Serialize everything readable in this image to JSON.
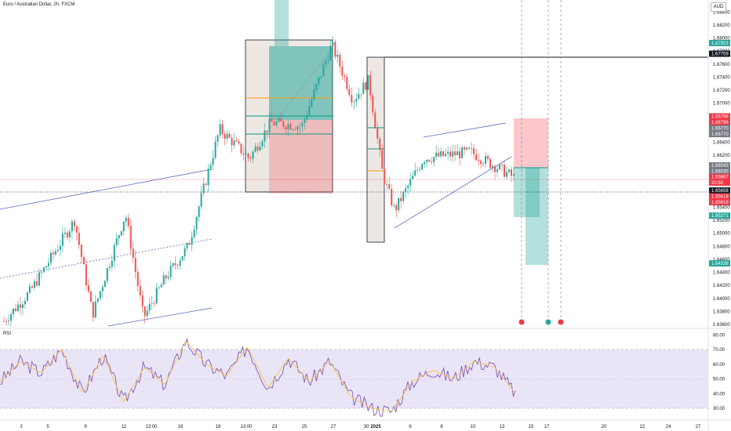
{
  "header": {
    "title": "Euro / Australian Dollar, 2h, FXCM",
    "currency": "AUD",
    "rsi_label": "RSI"
  },
  "price_axis": {
    "ticks": [
      "1.68400",
      "1.68200",
      "1.68000",
      "1.67800",
      "1.67600",
      "1.67400",
      "1.67200",
      "1.67000",
      "1.66800",
      "1.66600",
      "1.66400",
      "1.66200",
      "1.66000",
      "1.65800",
      "1.65600",
      "1.65400",
      "1.65200",
      "1.65000",
      "1.64800",
      "1.64600",
      "1.64400",
      "1.64200",
      "1.64000",
      "1.63800",
      "1.63600"
    ],
    "tags": [
      {
        "label": "1.67923",
        "value": 1.67923,
        "color": "#26a69a"
      },
      {
        "label": "1.67759",
        "value": 1.67759,
        "color": "#131722"
      },
      {
        "label": "1.66796",
        "value": 1.66796,
        "color": "#f23645"
      },
      {
        "label": "1.66796",
        "value": 1.66706,
        "color": "#f23645"
      },
      {
        "label": "1.66770",
        "value": 1.66615,
        "color": "#787b86"
      },
      {
        "label": "1.66770",
        "value": 1.66524,
        "color": "#787b86"
      },
      {
        "label": "1.66043",
        "value": 1.66043,
        "color": "#787b86"
      },
      {
        "label": "1.66035",
        "value": 1.65952,
        "color": "#787b86"
      },
      {
        "label": "1.65867",
        "value": 1.65867,
        "color": "#f23645"
      },
      {
        "label": "20:50",
        "value": 1.65777,
        "color": "#f23645"
      },
      {
        "label": "1.65658",
        "value": 1.65658,
        "color": "#131722"
      },
      {
        "label": "1.65619",
        "value": 1.65568,
        "color": "#f23645"
      },
      {
        "label": "1.65619",
        "value": 1.65477,
        "color": "#f23645"
      },
      {
        "label": "1.65271",
        "value": 1.65271,
        "color": "#26a69a"
      },
      {
        "label": "1.64538",
        "value": 1.64538,
        "color": "#26a69a"
      }
    ]
  },
  "rsi_axis": {
    "ticks": [
      "80.00",
      "70.00",
      "60.00",
      "50.00",
      "40.00",
      "30.00"
    ]
  },
  "time_axis": {
    "ticks": [
      "3",
      "5",
      "9",
      "11",
      "13:00",
      "16",
      "18",
      "13:00",
      "23",
      "25",
      "27",
      "30",
      "2025",
      "6",
      "8",
      "10",
      "13",
      "15",
      "17",
      "20",
      "22",
      "24",
      "27"
    ]
  },
  "colors": {
    "up": "#26a69a",
    "down": "#ef5350",
    "rsi_line": "#7e57c2",
    "rsi_ma": "#f7c547",
    "channel": "#5c6bc0",
    "rsi_band": "#e6e0f4"
  },
  "chart_data": {
    "type": "candlestick",
    "symbol": "Euro / Australian Dollar",
    "timeframe": "2h",
    "source": "FXCM",
    "y_range": [
      1.636,
      1.685
    ],
    "last_price": 1.65658,
    "approx_close_path": [
      {
        "x": "3",
        "close": 1.6365
      },
      {
        "x": "5",
        "close": 1.641
      },
      {
        "x": "9",
        "close": 1.652
      },
      {
        "x": "9",
        "close": 1.6375
      },
      {
        "x": "11",
        "close": 1.653
      },
      {
        "x": "11",
        "close": 1.637
      },
      {
        "x": "13:00",
        "close": 1.643
      },
      {
        "x": "16",
        "close": 1.648
      },
      {
        "x": "18",
        "close": 1.666
      },
      {
        "x": "13:00",
        "close": 1.6615
      },
      {
        "x": "23",
        "close": 1.667
      },
      {
        "x": "25",
        "close": 1.6665
      },
      {
        "x": "27",
        "close": 1.679
      },
      {
        "x": "30",
        "close": 1.6705
      },
      {
        "x": "2025",
        "close": 1.6735
      },
      {
        "x": "2025",
        "close": 1.659
      },
      {
        "x": "6",
        "close": 1.6535
      },
      {
        "x": "8",
        "close": 1.6615
      },
      {
        "x": "10",
        "close": 1.6625
      },
      {
        "x": "13",
        "close": 1.6586
      }
    ],
    "rsi": {
      "levels": [
        70,
        30
      ],
      "mid": 50,
      "range": [
        25,
        85
      ],
      "approx_path": [
        48,
        62,
        54,
        70,
        40,
        66,
        34,
        58,
        46,
        76,
        60,
        52,
        72,
        44,
        64,
        48,
        62,
        38,
        30,
        28,
        48,
        56,
        50,
        62,
        58,
        40
      ]
    }
  }
}
